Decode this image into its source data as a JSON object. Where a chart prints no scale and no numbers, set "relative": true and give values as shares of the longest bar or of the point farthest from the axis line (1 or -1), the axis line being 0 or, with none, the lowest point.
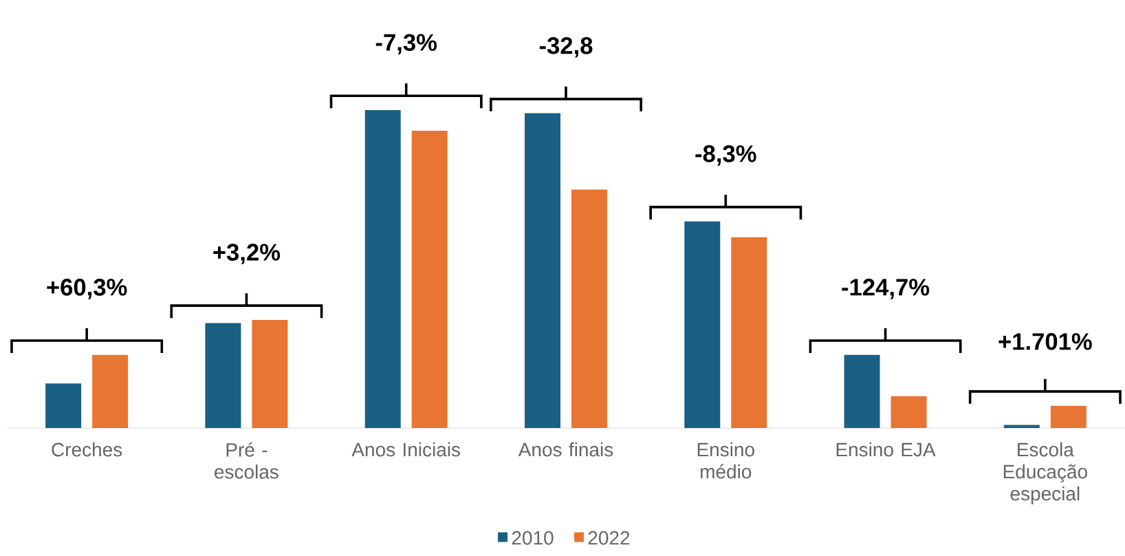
{
  "chart_data": {
    "type": "bar",
    "relative": true,
    "legend": "bottom",
    "categories": [
      "Creches",
      "Pré - escolas",
      "Anos Iniciais",
      "Anos finais",
      "Ensino médio",
      "Ensino EJA",
      "Escola Educação especial"
    ],
    "series": [
      {
        "name": "2010",
        "color": "#1a5f84",
        "values": [
          0.14,
          0.33,
          1,
          0.99,
          0.65,
          0.23,
          0.01
        ]
      },
      {
        "name": "2022",
        "color": "#e87532",
        "values": [
          0.23,
          0.34,
          0.935,
          0.75,
          0.6,
          0.1,
          0.07
        ]
      }
    ],
    "annotations": [
      "+60,3%",
      "+3,2%",
      "-7,3%",
      "-32,8",
      "-8,3%",
      "-124,7%",
      "+1.701%"
    ]
  }
}
